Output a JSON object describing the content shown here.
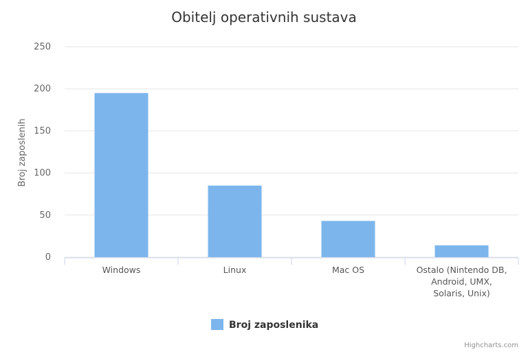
{
  "chart_data": {
    "type": "bar",
    "title": "Obitelj operativnih sustava",
    "xlabel": "",
    "ylabel": "Broj zaposlenih",
    "categories": [
      [
        "Windows"
      ],
      [
        "Linux"
      ],
      [
        "Mac OS"
      ],
      [
        "Ostalo (Nintendo DB,",
        "Android, UMX,",
        "Solaris, Unix)"
      ]
    ],
    "series": [
      {
        "name": "Broj zaposlenika",
        "values": [
          195,
          85,
          43,
          14
        ],
        "color": "#7cb5ec"
      }
    ],
    "ylim": [
      0,
      250
    ],
    "yticks": [
      0,
      50,
      100,
      150,
      200,
      250
    ],
    "grid": true,
    "legend": "bottom-center"
  },
  "credits": "Highcharts.com"
}
